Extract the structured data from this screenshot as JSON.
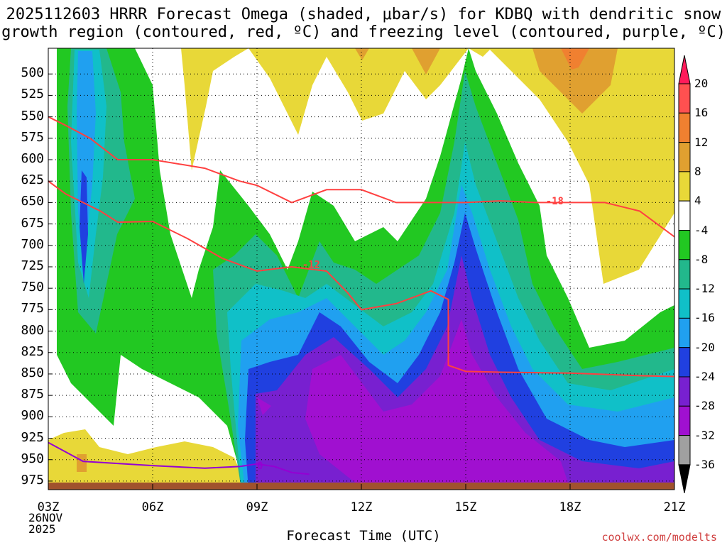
{
  "header": {
    "line1": "2025112603 HRRR Forecast Omega (shaded, μbar/s) for KDBQ with dendritic snow",
    "line2": "growth region (contoured, red, ºC) and freezing level (contoured, purple, ºC)"
  },
  "footer": {
    "xlabel": "Forecast Time (UTC)",
    "credit": "coolwx.com/modelts",
    "date_line1": "26NOV",
    "date_line2": "2025"
  },
  "chart_data": {
    "type": "time-height contour",
    "title": "2025112603 HRRR Forecast Omega (shaded, μbar/s) for KDBQ with dendritic snow growth region (contoured, red, ºC) and freezing level (contoured, purple, ºC)",
    "xlabel": "Forecast Time (UTC)",
    "ylabel": "Pressure (hPa)",
    "x_ticks": [
      "03Z",
      "06Z",
      "09Z",
      "12Z",
      "15Z",
      "18Z",
      "21Z"
    ],
    "x_hours": [
      3,
      6,
      9,
      12,
      15,
      18,
      21
    ],
    "y_ticks": [
      500,
      525,
      550,
      575,
      600,
      625,
      650,
      675,
      700,
      725,
      750,
      775,
      800,
      825,
      850,
      875,
      900,
      925,
      950,
      975
    ],
    "ylim": [
      470,
      985
    ],
    "xlim": [
      3,
      21
    ],
    "colorbar": {
      "levels": [
        20,
        16,
        12,
        8,
        4,
        -4,
        -8,
        -12,
        -16,
        -20,
        -24,
        -28,
        -32,
        -36
      ],
      "colors": [
        "#ff1a5a",
        "#ff5050",
        "#f08030",
        "#e0a030",
        "#e8d838",
        "#ffffff",
        "#22c822",
        "#22b88c",
        "#10c0c8",
        "#20a0f0",
        "#2040e0",
        "#7820d0",
        "#a010d0",
        "#a0a0a0",
        "#000000"
      ]
    },
    "contours": [
      {
        "label": "-18",
        "color": "#ff4040",
        "points": [
          [
            3,
            550
          ],
          [
            3.5,
            560
          ],
          [
            4.2,
            575
          ],
          [
            5,
            600
          ],
          [
            6,
            600
          ],
          [
            7.5,
            610
          ],
          [
            8.5,
            625
          ],
          [
            9,
            630
          ],
          [
            10,
            650
          ],
          [
            11,
            635
          ],
          [
            12,
            635
          ],
          [
            13,
            650
          ],
          [
            14,
            650
          ],
          [
            15,
            650
          ],
          [
            16,
            648
          ],
          [
            17,
            650
          ],
          [
            18,
            650
          ],
          [
            19,
            650
          ],
          [
            20,
            660
          ],
          [
            21,
            690
          ]
        ]
      },
      {
        "label": "-12",
        "color": "#ff4040",
        "points": [
          [
            3,
            625
          ],
          [
            3.5,
            640
          ],
          [
            4.5,
            660
          ],
          [
            5,
            673
          ],
          [
            6,
            672
          ],
          [
            7,
            692
          ],
          [
            8,
            715
          ],
          [
            9,
            730
          ],
          [
            10,
            725
          ],
          [
            11,
            730
          ],
          [
            11.6,
            755
          ],
          [
            12,
            775
          ],
          [
            13,
            768
          ],
          [
            14,
            753
          ],
          [
            14.5,
            763
          ],
          [
            14.5,
            840
          ],
          [
            15,
            847
          ],
          [
            16,
            848
          ],
          [
            18,
            849
          ],
          [
            20,
            852
          ],
          [
            21,
            853
          ]
        ]
      },
      {
        "label": "0",
        "color": "#9400d3",
        "points": [
          [
            3,
            930
          ],
          [
            4,
            952
          ],
          [
            6,
            957
          ],
          [
            7.5,
            960
          ],
          [
            8.5,
            958
          ],
          [
            9,
            955
          ],
          [
            9.5,
            958
          ],
          [
            10,
            965
          ],
          [
            10.5,
            967
          ]
        ]
      }
    ]
  }
}
